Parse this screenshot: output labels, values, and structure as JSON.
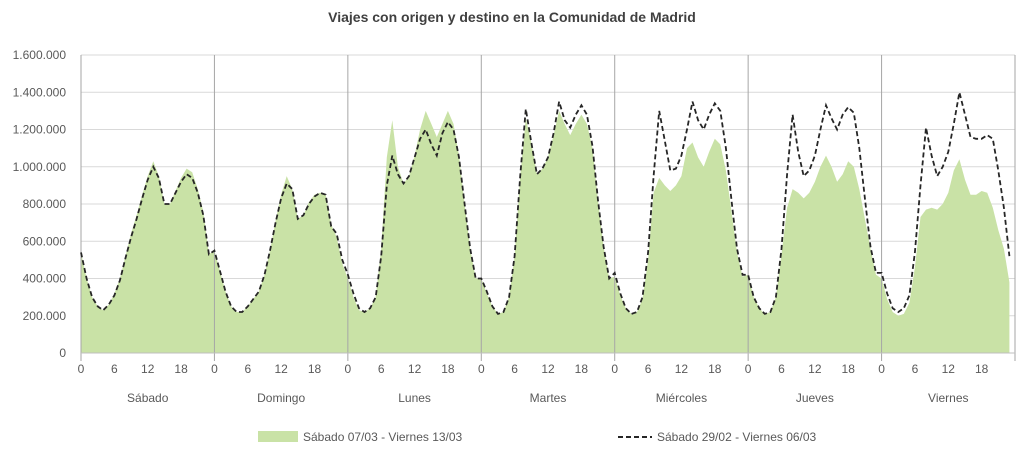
{
  "chart_data": {
    "type": "area",
    "title": "Viajes con origen y destino en la Comunidad de Madrid",
    "xlabel": "",
    "ylabel": "",
    "ylim": [
      0,
      1600000
    ],
    "yticks": [
      "0",
      "200.000",
      "400.000",
      "600.000",
      "800.000",
      "1.000.000",
      "1.200.000",
      "1.400.000",
      "1.600.000"
    ],
    "ytick_values": [
      0,
      200000,
      400000,
      600000,
      800000,
      1000000,
      1200000,
      1400000,
      1600000
    ],
    "hour_ticks": [
      0,
      6,
      12,
      18
    ],
    "days": [
      "Sábado",
      "Domingo",
      "Lunes",
      "Martes",
      "Miércoles",
      "Jueves",
      "Viernes"
    ],
    "grid": true,
    "legend_position": "bottom",
    "colors": {
      "area": "#c9e2a6",
      "line": "#262626",
      "grid": "#d9d9d9",
      "separator": "#a6a6a6"
    },
    "series": [
      {
        "name": "Sábado 07/03 - Viernes 13/03",
        "style": "area",
        "values_thousands": [
          540,
          400,
          300,
          250,
          230,
          260,
          320,
          400,
          520,
          640,
          740,
          850,
          950,
          1030,
          950,
          800,
          800,
          870,
          940,
          990,
          970,
          880,
          760,
          530,
          550,
          440,
          330,
          250,
          220,
          220,
          250,
          290,
          330,
          420,
          550,
          710,
          850,
          950,
          880,
          720,
          740,
          810,
          850,
          860,
          850,
          690,
          620,
          480,
          400,
          300,
          230,
          220,
          240,
          300,
          560,
          1050,
          1250,
          1000,
          910,
          950,
          1060,
          1200,
          1300,
          1230,
          1160,
          1230,
          1300,
          1230,
          1060,
          800,
          560,
          400,
          400,
          320,
          250,
          210,
          220,
          300,
          520,
          950,
          1260,
          1130,
          960,
          990,
          1050,
          1170,
          1300,
          1230,
          1170,
          1230,
          1280,
          1230,
          1100,
          820,
          570,
          400,
          410,
          310,
          240,
          210,
          220,
          290,
          500,
          860,
          940,
          900,
          870,
          900,
          950,
          1100,
          1130,
          1050,
          1000,
          1080,
          1150,
          1120,
          980,
          760,
          540,
          410,
          420,
          300,
          240,
          210,
          220,
          300,
          530,
          780,
          880,
          860,
          830,
          860,
          920,
          1000,
          1060,
          1000,
          920,
          960,
          1030,
          1000,
          880,
          720,
          560,
          420,
          400,
          290,
          220,
          200,
          210,
          270,
          460,
          730,
          770,
          780,
          770,
          800,
          860,
          980,
          1040,
          930,
          850,
          850,
          870,
          860,
          780,
          660,
          560,
          380
        ]
      },
      {
        "name": "Sábado 29/02 - Viernes 06/03",
        "style": "dashed-line",
        "values_thousands": [
          540,
          400,
          300,
          250,
          230,
          260,
          310,
          390,
          510,
          620,
          720,
          830,
          930,
          1000,
          940,
          800,
          800,
          860,
          920,
          960,
          940,
          860,
          740,
          530,
          550,
          440,
          330,
          250,
          220,
          220,
          250,
          290,
          330,
          420,
          550,
          700,
          830,
          910,
          880,
          720,
          740,
          800,
          840,
          860,
          850,
          680,
          640,
          500,
          420,
          320,
          240,
          220,
          240,
          300,
          520,
          900,
          1060,
          960,
          910,
          950,
          1050,
          1150,
          1200,
          1120,
          1060,
          1180,
          1240,
          1200,
          1050,
          800,
          560,
          400,
          400,
          330,
          250,
          210,
          220,
          300,
          520,
          950,
          1310,
          1130,
          960,
          990,
          1050,
          1180,
          1350,
          1250,
          1210,
          1280,
          1330,
          1280,
          1110,
          820,
          570,
          400,
          430,
          320,
          240,
          210,
          220,
          300,
          540,
          950,
          1300,
          1140,
          980,
          990,
          1060,
          1200,
          1350,
          1250,
          1200,
          1280,
          1340,
          1300,
          1100,
          820,
          560,
          420,
          420,
          300,
          240,
          210,
          220,
          300,
          560,
          960,
          1280,
          1080,
          950,
          980,
          1060,
          1200,
          1330,
          1260,
          1200,
          1280,
          1320,
          1290,
          1100,
          830,
          570,
          430,
          430,
          320,
          240,
          220,
          240,
          310,
          540,
          900,
          1210,
          1060,
          950,
          1000,
          1080,
          1230,
          1400,
          1280,
          1160,
          1150,
          1150,
          1170,
          1150,
          980,
          780,
          520
        ]
      }
    ]
  }
}
